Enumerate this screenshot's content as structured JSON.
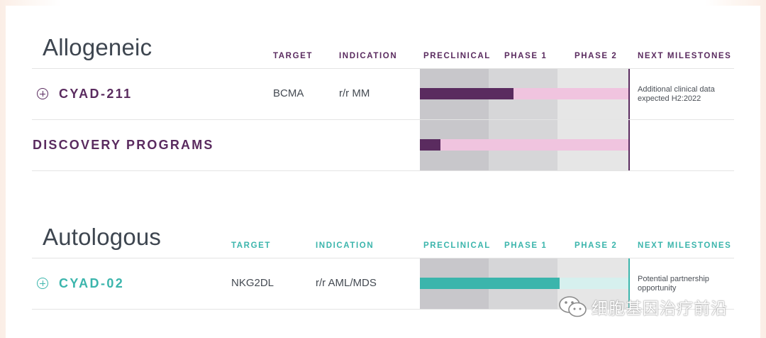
{
  "colors": {
    "purple": "#5a2b5f",
    "purple_light": "#f0c4df",
    "teal": "#3bb5ac",
    "teal_light": "#d6f0ee",
    "preclinical_bg": "#c8c7cb",
    "phase1_bg": "#d6d6d8",
    "phase2_bg": "#e6e6e6"
  },
  "allogeneic": {
    "title": "Allogeneic",
    "headers": {
      "target": "TARGET",
      "indication": "INDICATION",
      "preclinical": "PRECLINICAL",
      "phase1": "PHASE 1",
      "phase2": "PHASE 2",
      "milestones": "NEXT MILESTONES"
    },
    "programs": [
      {
        "name": "CYAD-211",
        "target": "BCMA",
        "indication": "r/r MM",
        "milestone_line1": "Additional clinical data",
        "milestone_line2": "expected H2:2022",
        "progress_fraction": 0.45
      }
    ],
    "discovery": {
      "name": "DISCOVERY PROGRAMS",
      "progress_fraction": 0.1
    }
  },
  "autologous": {
    "title": "Autologous",
    "headers": {
      "target": "TARGET",
      "indication": "INDICATION",
      "preclinical": "PRECLINICAL",
      "phase1": "PHASE 1",
      "phase2": "PHASE 2",
      "milestones": "NEXT MILESTONES"
    },
    "programs": [
      {
        "name": "CYAD-02",
        "target": "NKG2DL",
        "indication": "r/r AML/MDS",
        "milestone_line1": "Potential partnership",
        "milestone_line2": "opportunity",
        "progress_fraction": 0.67
      }
    ]
  },
  "watermark": {
    "icon": "wechat-icon",
    "text": "细胞基因治疗前沿"
  }
}
